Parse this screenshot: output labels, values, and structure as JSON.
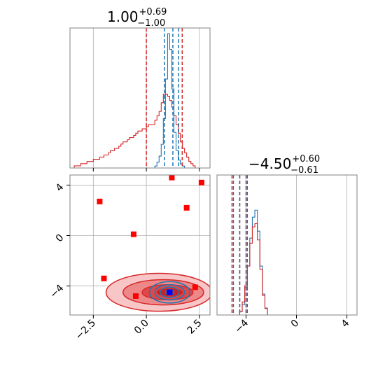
{
  "chart_data": {
    "type": "corner",
    "colors": {
      "blue": "#1f77b4",
      "red": "#d62728",
      "marker_red": "#ff0000",
      "marker_blue": "#0000ff",
      "grid": "#b0b0b0"
    },
    "params": [
      {
        "median": "1.00",
        "plus": "+0.69",
        "minus": "−1.00",
        "range": [
          -3.6,
          3.0
        ]
      },
      {
        "median": "−4.50",
        "plus": "+0.60",
        "minus": "−0.61",
        "range": [
          -6.3,
          4.8
        ]
      }
    ],
    "x_ticks_p0": {
      "values": [
        -2.5,
        0.0,
        2.5
      ],
      "labels": [
        "−2.5",
        "0.0",
        "2.5"
      ]
    },
    "x_ticks_p1": {
      "values": [
        -4,
        0,
        4
      ],
      "labels": [
        "−4",
        "0",
        "4"
      ]
    },
    "y_ticks_p1": {
      "values": [
        4,
        0,
        -4
      ],
      "labels": [
        "4",
        "0",
        "−4"
      ]
    },
    "quantile_lines": {
      "red_p0": [
        0.0,
        1.69
      ],
      "blue_p0": [
        0.85,
        1.25,
        1.52
      ],
      "red_p1": [
        -5.11,
        -4.5,
        -3.9
      ],
      "blue_p1": [
        -5.0,
        -4.5,
        -4.0
      ]
    },
    "hist_p0": {
      "bin_start": -3.6,
      "bin_width": 0.1,
      "blue": [
        0,
        0,
        0,
        0,
        0,
        0,
        0,
        0,
        0,
        0,
        0,
        0,
        0,
        0,
        0,
        0,
        0,
        0,
        0,
        0,
        0,
        0,
        0,
        0,
        0,
        0,
        0,
        0,
        0,
        0,
        0,
        0,
        0,
        0,
        0,
        0,
        0,
        0,
        0,
        0,
        1,
        3,
        6,
        12,
        25,
        45,
        68,
        60,
        40,
        18,
        9,
        4,
        2,
        1,
        0,
        0,
        0,
        0,
        0,
        0,
        0,
        0,
        0,
        0,
        0,
        0
      ],
      "red": [
        0,
        0,
        1,
        1,
        1,
        2,
        2,
        2,
        3,
        3,
        3,
        4,
        4,
        4,
        5,
        5,
        6,
        6,
        7,
        8,
        8,
        9,
        9,
        10,
        11,
        12,
        12,
        13,
        14,
        14,
        15,
        16,
        17,
        17,
        18,
        18,
        19,
        20,
        20,
        20,
        22,
        24,
        26,
        30,
        34,
        34,
        33,
        31,
        28,
        24,
        20,
        16,
        12,
        9,
        7,
        5,
        3,
        2,
        1,
        0,
        0,
        0,
        0,
        0,
        0,
        0
      ]
    },
    "hist_p1": {
      "bin_start": -6.3,
      "bin_width": 0.2,
      "blue": [
        0,
        0,
        0,
        0,
        0,
        0,
        0,
        0,
        0,
        1,
        3,
        8,
        14,
        22,
        28,
        30,
        24,
        14,
        6,
        2,
        0,
        0,
        0,
        0,
        0,
        0,
        0,
        0,
        0,
        0,
        0,
        0,
        0,
        0,
        0,
        0,
        0,
        0,
        0,
        0,
        0,
        0,
        0,
        0,
        0,
        0,
        0,
        0,
        0,
        0,
        0,
        0,
        0,
        0,
        0,
        0
      ],
      "red": [
        0,
        0,
        0,
        0,
        0,
        0,
        0,
        0,
        0,
        1,
        4,
        9,
        15,
        22,
        27,
        28,
        23,
        14,
        6,
        2,
        0,
        0,
        0,
        0,
        0,
        0,
        0,
        0,
        0,
        0,
        0,
        0,
        0,
        0,
        0,
        0,
        0,
        0,
        0,
        0,
        0,
        0,
        0,
        0,
        0,
        0,
        0,
        0,
        0,
        0,
        0,
        0,
        0,
        0,
        0,
        0
      ]
    },
    "scatter_red_squares": [
      {
        "x": -2.2,
        "y": 2.7
      },
      {
        "x": -0.6,
        "y": 0.1
      },
      {
        "x": 1.2,
        "y": 4.6
      },
      {
        "x": 2.6,
        "y": 4.2
      },
      {
        "x": 1.9,
        "y": 2.2
      },
      {
        "x": -2.0,
        "y": -3.4
      },
      {
        "x": -0.5,
        "y": -4.8
      },
      {
        "x": 2.3,
        "y": -4.1
      }
    ],
    "scatter_blue_square": {
      "x": 1.1,
      "y": -4.5
    },
    "contours_red": [
      {
        "cx": 0.6,
        "cy": -4.5,
        "rx": 2.5,
        "ry": 1.5,
        "fill": "#f8c6c6"
      },
      {
        "cx": 0.8,
        "cy": -4.5,
        "rx": 1.9,
        "ry": 1.0,
        "fill": "#ee8888"
      },
      {
        "cx": 1.0,
        "cy": -4.5,
        "rx": 1.2,
        "ry": 0.6,
        "fill": "#e04848"
      },
      {
        "cx": 1.1,
        "cy": -4.5,
        "rx": 0.6,
        "ry": 0.3,
        "fill": "#cc2020"
      }
    ],
    "contours_blue": [
      {
        "cx": 1.1,
        "cy": -4.5,
        "rx": 0.95,
        "ry": 0.85
      },
      {
        "cx": 1.1,
        "cy": -4.5,
        "rx": 0.7,
        "ry": 0.6
      },
      {
        "cx": 1.1,
        "cy": -4.5,
        "rx": 0.45,
        "ry": 0.4
      },
      {
        "cx": 1.1,
        "cy": -4.5,
        "rx": 0.2,
        "ry": 0.2
      }
    ]
  }
}
